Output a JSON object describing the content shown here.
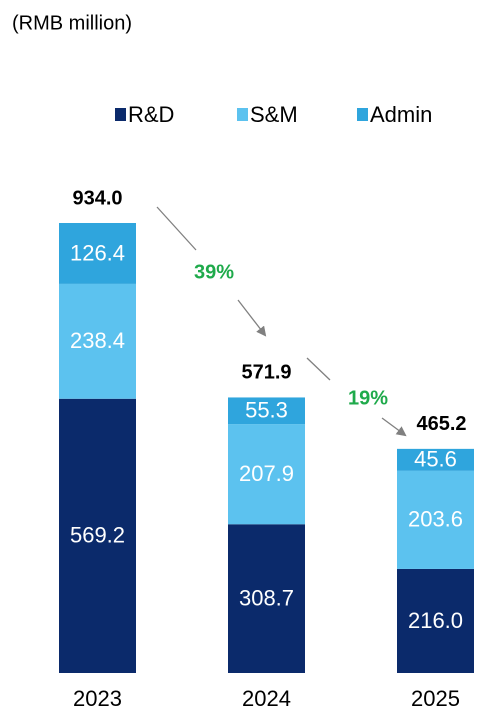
{
  "chart_data": {
    "type": "stacked_bar",
    "title": "(RMB million)",
    "categories": [
      "2023",
      "2024",
      "2025"
    ],
    "series": [
      {
        "name": "R&D",
        "color": "#0b2a6b",
        "values": [
          569.2,
          308.7,
          216.0
        ],
        "value_labels": [
          "569.2",
          "308.7",
          "216.0"
        ]
      },
      {
        "name": "S&M",
        "color": "#5cc2ef",
        "values": [
          238.4,
          207.9,
          203.6
        ],
        "value_labels": [
          "238.4",
          "207.9",
          "203.6"
        ]
      },
      {
        "name": "Admin",
        "color": "#2fa5dd",
        "values": [
          126.4,
          55.3,
          45.6
        ],
        "value_labels": [
          "126.4",
          "55.3",
          "45.6"
        ]
      }
    ],
    "totals": [
      934.0,
      571.9,
      465.2
    ],
    "total_labels": [
      "934.0",
      "571.9",
      "465.2"
    ],
    "annotations": [
      "39%",
      "19%"
    ]
  }
}
